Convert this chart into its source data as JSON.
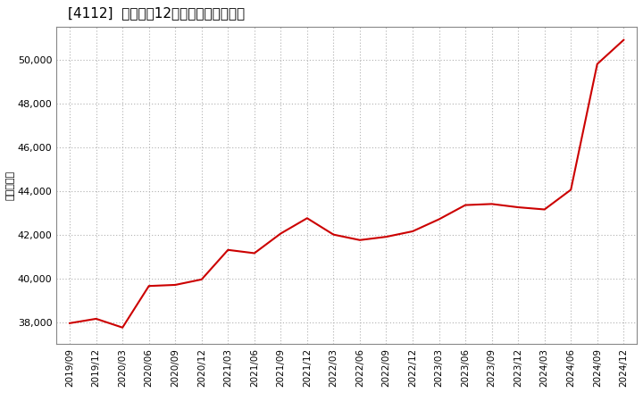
{
  "title": "[4112]  売上高の12か月移動合計の推移",
  "ylabel": "（百万円）",
  "line_color": "#cc0000",
  "background_color": "#ffffff",
  "plot_bg_color": "#ffffff",
  "grid_color": "#b0b0b0",
  "ylim": [
    37000,
    51500
  ],
  "yticks": [
    38000,
    40000,
    42000,
    44000,
    46000,
    48000,
    50000
  ],
  "dates": [
    "2019/09",
    "2019/12",
    "2020/03",
    "2020/06",
    "2020/09",
    "2020/12",
    "2021/03",
    "2021/06",
    "2021/09",
    "2021/12",
    "2022/03",
    "2022/06",
    "2022/09",
    "2022/12",
    "2023/03",
    "2023/06",
    "2023/09",
    "2023/12",
    "2024/03",
    "2024/06",
    "2024/09",
    "2024/12"
  ],
  "values": [
    37950,
    38150,
    37750,
    39650,
    39700,
    39950,
    41300,
    41150,
    42050,
    42750,
    42000,
    41750,
    41900,
    42150,
    42700,
    43350,
    43400,
    43250,
    43150,
    44050,
    49800,
    50900
  ],
  "title_fontsize": 11,
  "ylabel_fontsize": 8,
  "tick_fontsize": 8,
  "xtick_fontsize": 7.5,
  "line_width": 1.5
}
